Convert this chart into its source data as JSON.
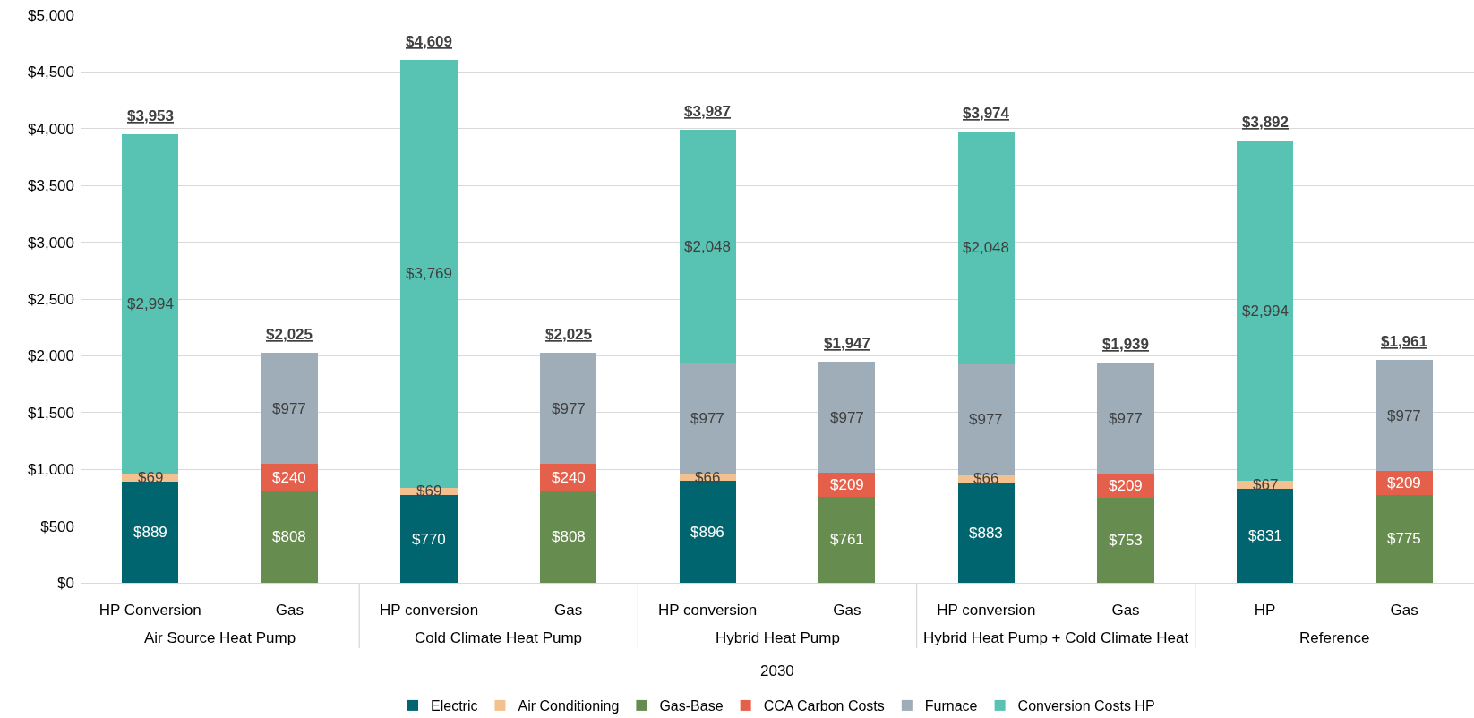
{
  "chart_data": {
    "type": "bar",
    "stacked": true,
    "categories": [
      "HP Conversion",
      "Gas",
      "HP conversion",
      "Gas",
      "HP conversion",
      "Gas",
      "HP conversion",
      "Gas",
      "HP",
      "Gas"
    ],
    "xlabel": "2030",
    "annotations": [
      "Air Source Heat Pump",
      "Cold Climate Heat Pump",
      "Hybrid Heat Pump",
      "Hybrid Heat Pump + Cold Climate Heat",
      "Reference"
    ],
    "ylim": [
      0,
      5000
    ],
    "yticks": [
      {
        "value": 0,
        "label": "$0"
      },
      {
        "value": 500,
        "label": "$500"
      },
      {
        "value": 1000,
        "label": "$1,000"
      },
      {
        "value": 1500,
        "label": "$1,500"
      },
      {
        "value": 2000,
        "label": "$2,000"
      },
      {
        "value": 2500,
        "label": "$2,500"
      },
      {
        "value": 3000,
        "label": "$3,000"
      },
      {
        "value": 3500,
        "label": "$3,500"
      },
      {
        "value": 4000,
        "label": "$4,000"
      },
      {
        "value": 4500,
        "label": "$4,500"
      },
      {
        "value": 5000,
        "label": "$5,000"
      }
    ],
    "grid": "y",
    "legend": "bottom",
    "series": [
      {
        "name": "Electric",
        "color": "#00656e",
        "values": [
          889,
          null,
          770,
          null,
          896,
          null,
          883,
          null,
          831,
          null
        ],
        "value_labels": [
          "$889",
          null,
          "$770",
          null,
          "$896",
          null,
          "$883",
          null,
          "$831",
          null
        ]
      },
      {
        "name": "Air Conditioning",
        "color": "#f2c18f",
        "values": [
          69,
          null,
          69,
          null,
          66,
          null,
          66,
          null,
          67,
          null
        ],
        "value_labels": [
          "$69",
          null,
          "$69",
          null,
          "$66",
          null,
          "$66",
          null,
          "$67",
          null
        ]
      },
      {
        "name": "Gas-Base",
        "color": "#678c50",
        "values": [
          null,
          808,
          null,
          808,
          null,
          761,
          null,
          753,
          null,
          775
        ],
        "value_labels": [
          null,
          "$808",
          null,
          "$808",
          null,
          "$761",
          null,
          "$753",
          null,
          "$775"
        ]
      },
      {
        "name": "CCA Carbon Costs",
        "color": "#e5604b",
        "values": [
          null,
          240,
          null,
          240,
          null,
          209,
          null,
          209,
          null,
          209
        ],
        "value_labels": [
          null,
          "$240",
          null,
          "$240",
          null,
          "$209",
          null,
          "$209",
          null,
          "$209"
        ]
      },
      {
        "name": "Furnace",
        "color": "#9eadb7",
        "values": [
          null,
          977,
          null,
          977,
          977,
          977,
          977,
          977,
          null,
          977
        ],
        "value_labels": [
          null,
          "$977",
          null,
          "$977",
          "$977",
          "$977",
          "$977",
          "$977",
          null,
          "$977"
        ]
      },
      {
        "name": "Conversion Costs HP",
        "color": "#58c2b3",
        "values": [
          2994,
          null,
          3769,
          null,
          2048,
          null,
          2048,
          null,
          2994,
          null
        ],
        "value_labels": [
          "$2,994",
          null,
          "$3,769",
          null,
          "$2,048",
          null,
          "$2,048",
          null,
          "$2,994",
          null
        ]
      }
    ],
    "totals": [
      "$3,953",
      "$2,025",
      "$4,609",
      "$2,025",
      "$3,987",
      "$1,947",
      "$3,974",
      "$1,939",
      "$3,892",
      "$1,961"
    ]
  }
}
